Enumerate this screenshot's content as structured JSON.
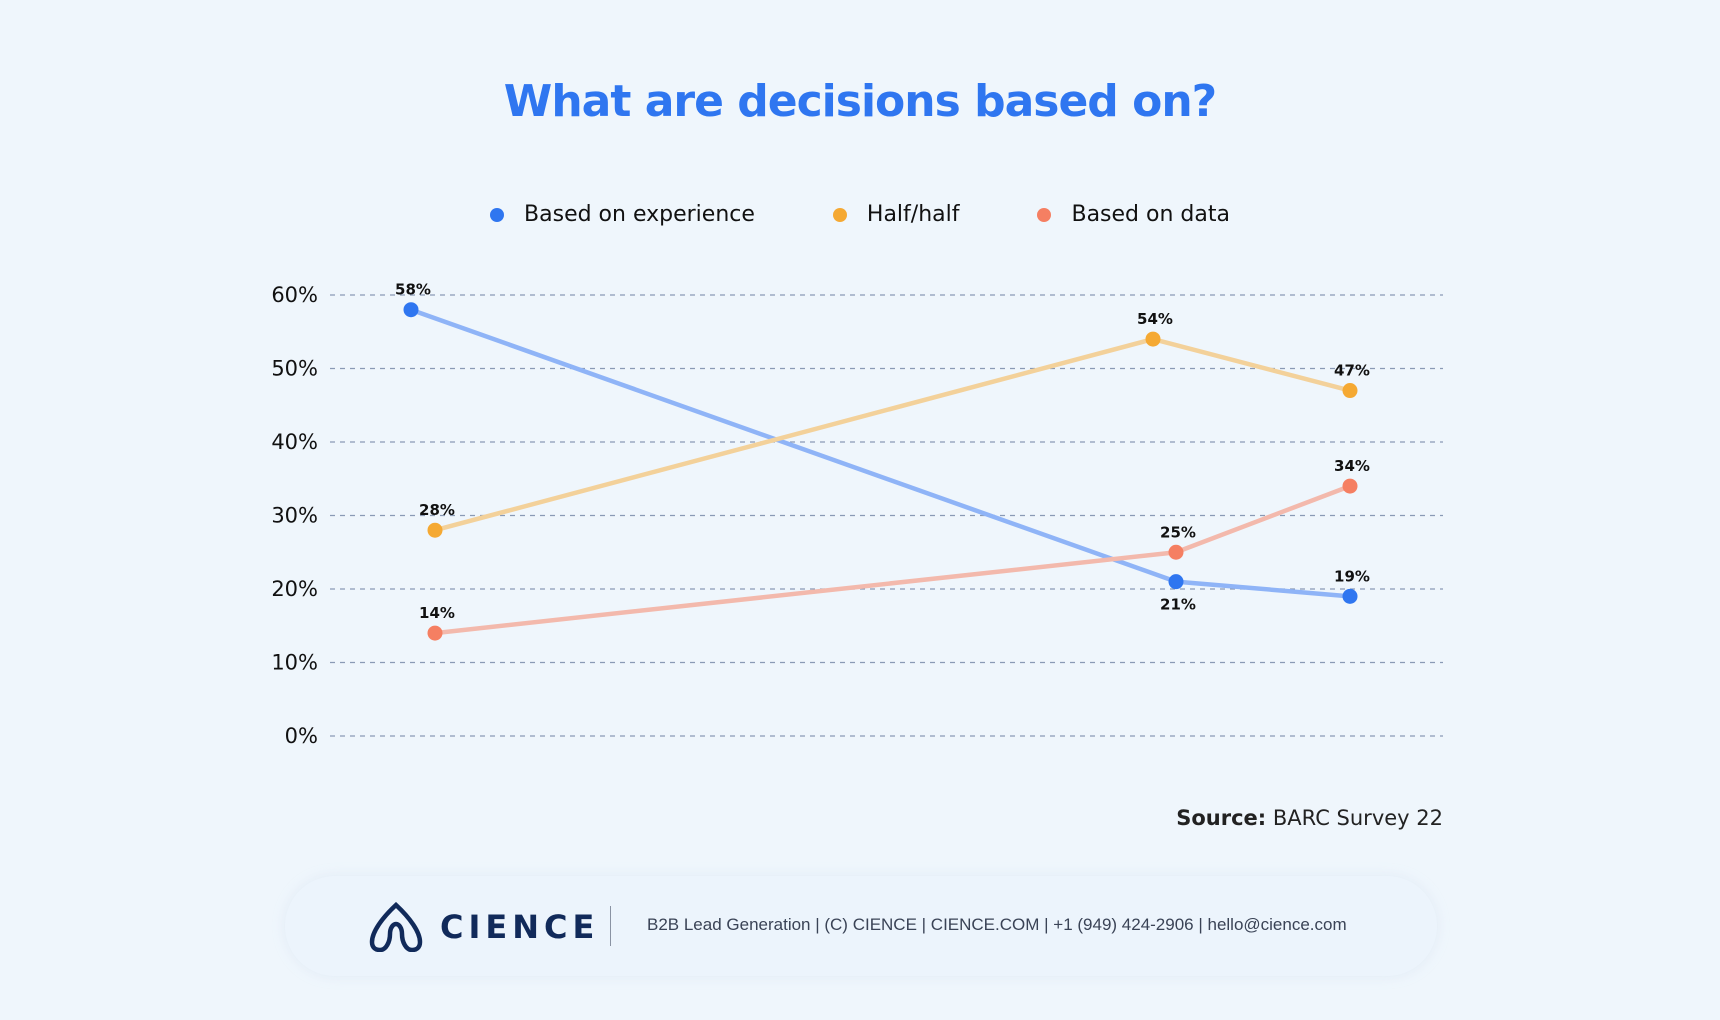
{
  "title": "What are decisions based on?",
  "legend": [
    {
      "label": "Based on experience",
      "color": "#2f76f0"
    },
    {
      "label": "Half/half",
      "color": "#f5a933"
    },
    {
      "label": "Based on data",
      "color": "#f57f62"
    }
  ],
  "source": {
    "label": "Source:",
    "text": "BARC Survey 22"
  },
  "footer": {
    "logo_text": "CIENCE",
    "text": "B2B Lead Generation | (C) CIENCE | CIENCE.COM | +1 (949) 424-2906 | hello@cience.com"
  },
  "chart_data": {
    "type": "line",
    "title": "What are decisions based on?",
    "ylim": [
      0,
      60
    ],
    "yticks": [
      "0%",
      "10%",
      "20%",
      "30%",
      "40%",
      "50%",
      "60%"
    ],
    "grid": true,
    "legend_position": "top",
    "series": [
      {
        "name": "Based on experience",
        "color": "#2f76f0",
        "line_color": "#8fb4f7",
        "values": [
          58,
          21,
          19
        ],
        "labels": [
          "58%",
          "21%",
          "19%"
        ]
      },
      {
        "name": "Half/half",
        "color": "#f5a933",
        "line_color": "#f3d19a",
        "values": [
          28,
          54,
          47
        ],
        "labels": [
          "28%",
          "54%",
          "47%"
        ]
      },
      {
        "name": "Based on data",
        "color": "#f57f62",
        "line_color": "#f3b9ac",
        "values": [
          14,
          25,
          34
        ],
        "labels": [
          "14%",
          "25%",
          "34%"
        ]
      }
    ]
  }
}
